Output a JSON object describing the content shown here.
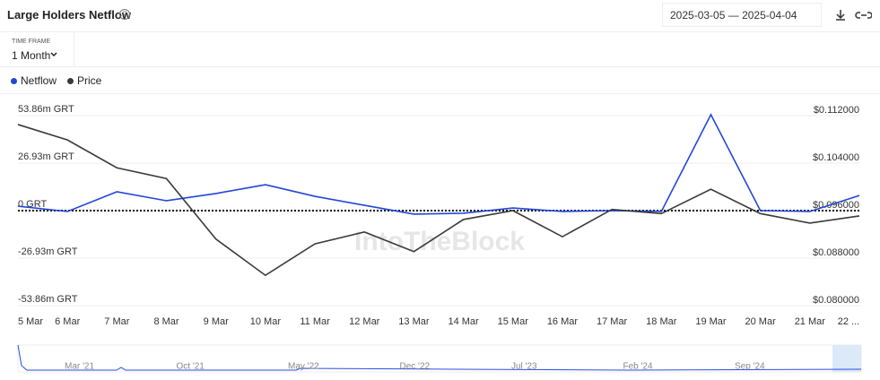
{
  "chart_data": {
    "type": "line",
    "title": "Large Holders Netflow",
    "date_start": "2025-03-05",
    "date_separator": "—",
    "date_end": "2025-04-04",
    "time_frame_label": "TIME FRAME",
    "time_frame": "1 Month",
    "watermark": "IntoTheBlock",
    "categories": [
      "5 Mar",
      "6 Mar",
      "7 Mar",
      "8 Mar",
      "9 Mar",
      "10 Mar",
      "11 Mar",
      "12 Mar",
      "13 Mar",
      "14 Mar",
      "15 Mar",
      "16 Mar",
      "17 Mar",
      "18 Mar",
      "19 Mar",
      "20 Mar",
      "21 Mar",
      "22 ..."
    ],
    "series": [
      {
        "name": "Netflow",
        "color": "#2146d8",
        "values": [
          2.5,
          -0.5,
          10.7,
          5.6,
          9.7,
          14.7,
          8.1,
          3.0,
          -2.0,
          -1.5,
          1.5,
          -0.5,
          0,
          -0.5,
          54.4,
          0,
          -0.5,
          8.6
        ]
      },
      {
        "name": "Price",
        "color": "#3a3a3a",
        "axis": "y2",
        "values": [
          0.1105,
          0.1079,
          0.1032,
          0.1014,
          0.0912,
          0.0851,
          0.0904,
          0.0924,
          0.0891,
          0.0945,
          0.096,
          0.0916,
          0.0962,
          0.0955,
          0.0996,
          0.0955,
          0.0939,
          0.0951
        ]
      }
    ],
    "ylim": [
      -53.86,
      53.86
    ],
    "yticks": [
      {
        "value": 53.86,
        "label": "53.86m GRT"
      },
      {
        "value": 26.93,
        "label": "26.93m GRT"
      },
      {
        "value": 0,
        "label": "0 GRT"
      },
      {
        "value": -26.93,
        "label": "-26.93m GRT"
      },
      {
        "value": -53.86,
        "label": "-53.86m GRT"
      }
    ],
    "y2lim": [
      0.08,
      0.112
    ],
    "y2ticks": [
      {
        "value": 0.112,
        "label": "$0.112000"
      },
      {
        "value": 0.104,
        "label": "$0.104000"
      },
      {
        "value": 0.096,
        "label": "$0.096000"
      },
      {
        "value": 0.088,
        "label": "$0.088000"
      },
      {
        "value": 0.08,
        "label": "$0.080000"
      }
    ],
    "grid": true,
    "navigator_labels": [
      "Mar '21",
      "Oct '21",
      "May '22",
      "Dec '22",
      "Jul '23",
      "Feb '24",
      "Sep '24"
    ]
  }
}
